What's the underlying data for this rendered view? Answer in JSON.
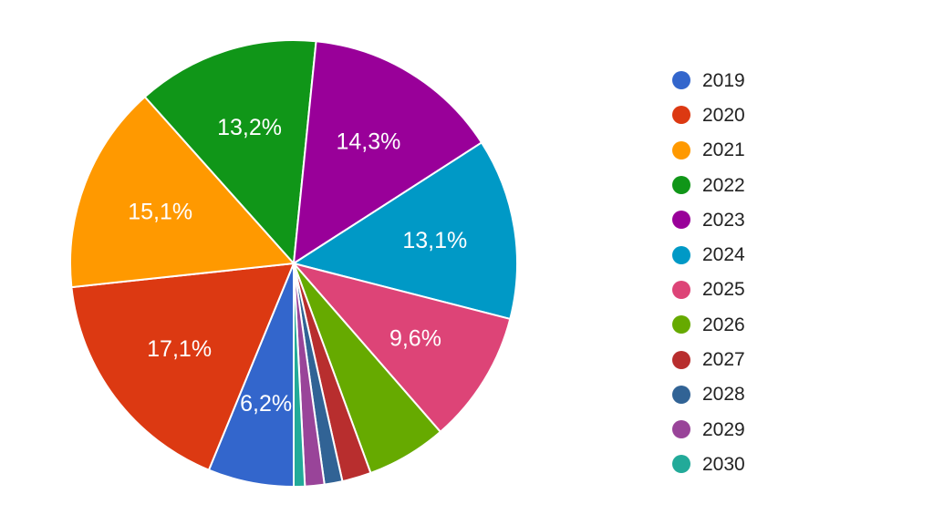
{
  "chart_data": {
    "type": "pie",
    "categories": [
      "2019",
      "2020",
      "2021",
      "2022",
      "2023",
      "2024",
      "2025",
      "2026",
      "2027",
      "2028",
      "2029",
      "2030"
    ],
    "values": [
      6.2,
      17.1,
      15.1,
      13.2,
      14.3,
      13.1,
      9.6,
      5.8,
      2.1,
      1.3,
      1.4,
      0.8
    ],
    "value_labels": [
      "6,2%",
      "17,1%",
      "15,1%",
      "13,2%",
      "14,3%",
      "13,1%",
      "9,6%",
      "",
      "",
      "",
      "",
      ""
    ],
    "colors": [
      "#3366cc",
      "#dc3912",
      "#ff9900",
      "#109618",
      "#990099",
      "#0099c6",
      "#dd4477",
      "#66aa00",
      "#b82e2e",
      "#316395",
      "#994499",
      "#22aa99"
    ],
    "title": "",
    "legend_position": "right",
    "start_angle_degrees": 90,
    "direction": "clockwise"
  }
}
